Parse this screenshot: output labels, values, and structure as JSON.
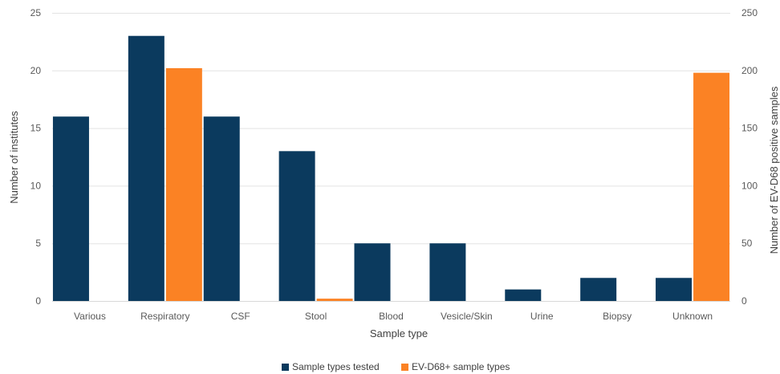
{
  "chart_data": {
    "type": "bar",
    "categories": [
      "Various",
      "Respiratory",
      "CSF",
      "Stool",
      "Blood",
      "Vesicle/Skin",
      "Urine",
      "Biopsy",
      "Unknown"
    ],
    "series": [
      {
        "name": "Sample types tested",
        "axis": "left",
        "color": "#0b3a5e",
        "values": [
          16,
          23,
          16,
          13,
          5,
          5,
          1,
          2,
          2
        ]
      },
      {
        "name": "EV-D68+ sample types",
        "axis": "right",
        "color": "#fb8224",
        "values": [
          0,
          202,
          0,
          2,
          0,
          0,
          0,
          0,
          198
        ]
      }
    ],
    "xlabel": "Sample type",
    "ylabel": "Number of institutes",
    "y2label": "Number of EV-D68 positive samples",
    "ylim": [
      0,
      25
    ],
    "y2lim": [
      0,
      250
    ],
    "yticks": [
      0,
      5,
      10,
      15,
      20,
      25
    ],
    "y2ticks": [
      0,
      50,
      100,
      150,
      200,
      250
    ],
    "grid": true,
    "legend": "bottom"
  }
}
